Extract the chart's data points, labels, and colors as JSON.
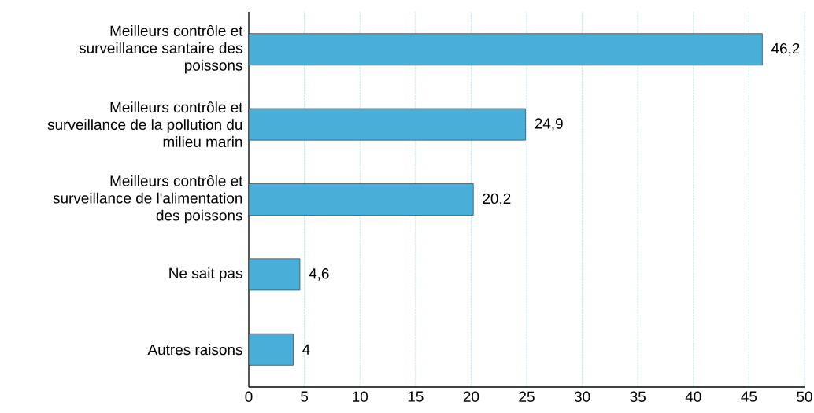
{
  "chart_data": {
    "type": "bar",
    "orientation": "horizontal",
    "categories": [
      "Meilleurs contrôle et surveillance santaire des poissons",
      "Meilleurs contrôle et surveillance de la pollution du milieu marin",
      "Meilleurs contrôle et surveillance de l'alimentation des poissons",
      "Ne sait pas",
      "Autres raisons"
    ],
    "values": [
      46.2,
      24.9,
      20.2,
      4.6,
      4
    ],
    "value_labels": [
      "46,2",
      "24,9",
      "20,2",
      "4,6",
      "4"
    ],
    "color": "#4aafd8",
    "xlim": [
      0,
      50
    ],
    "xticks": [
      0,
      5,
      10,
      15,
      20,
      25,
      30,
      35,
      40,
      45,
      50
    ],
    "grid": "x"
  }
}
